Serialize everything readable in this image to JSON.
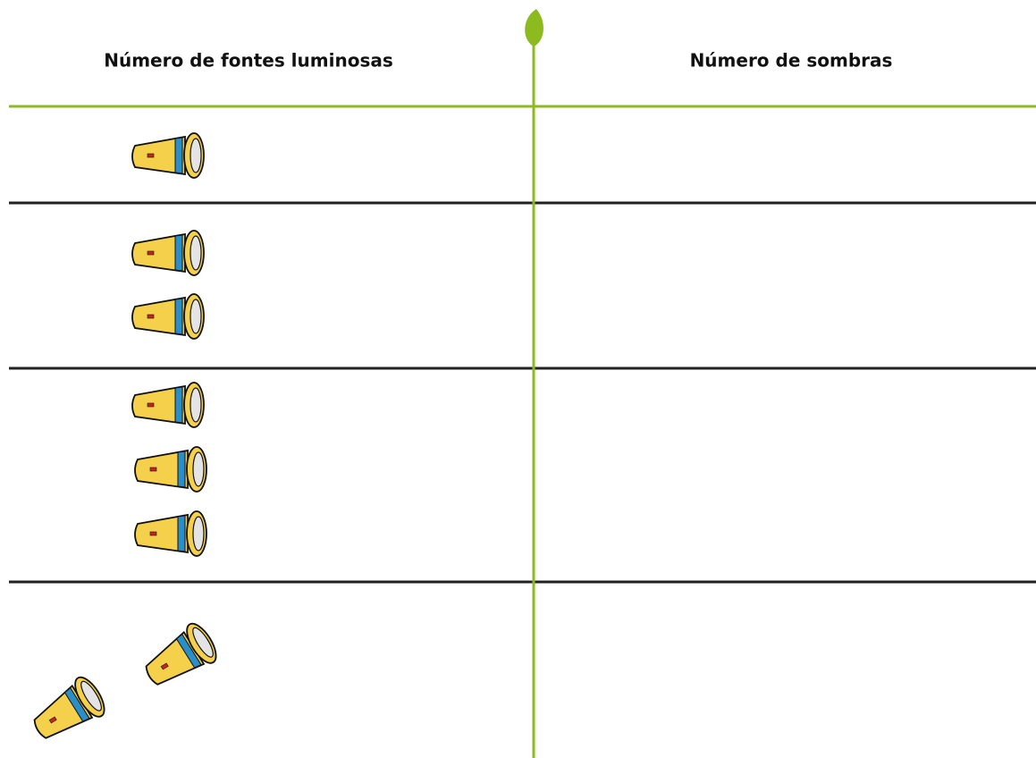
{
  "table": {
    "headers": [
      "Número de fontes luminosas",
      "Número de sombras"
    ]
  }
}
